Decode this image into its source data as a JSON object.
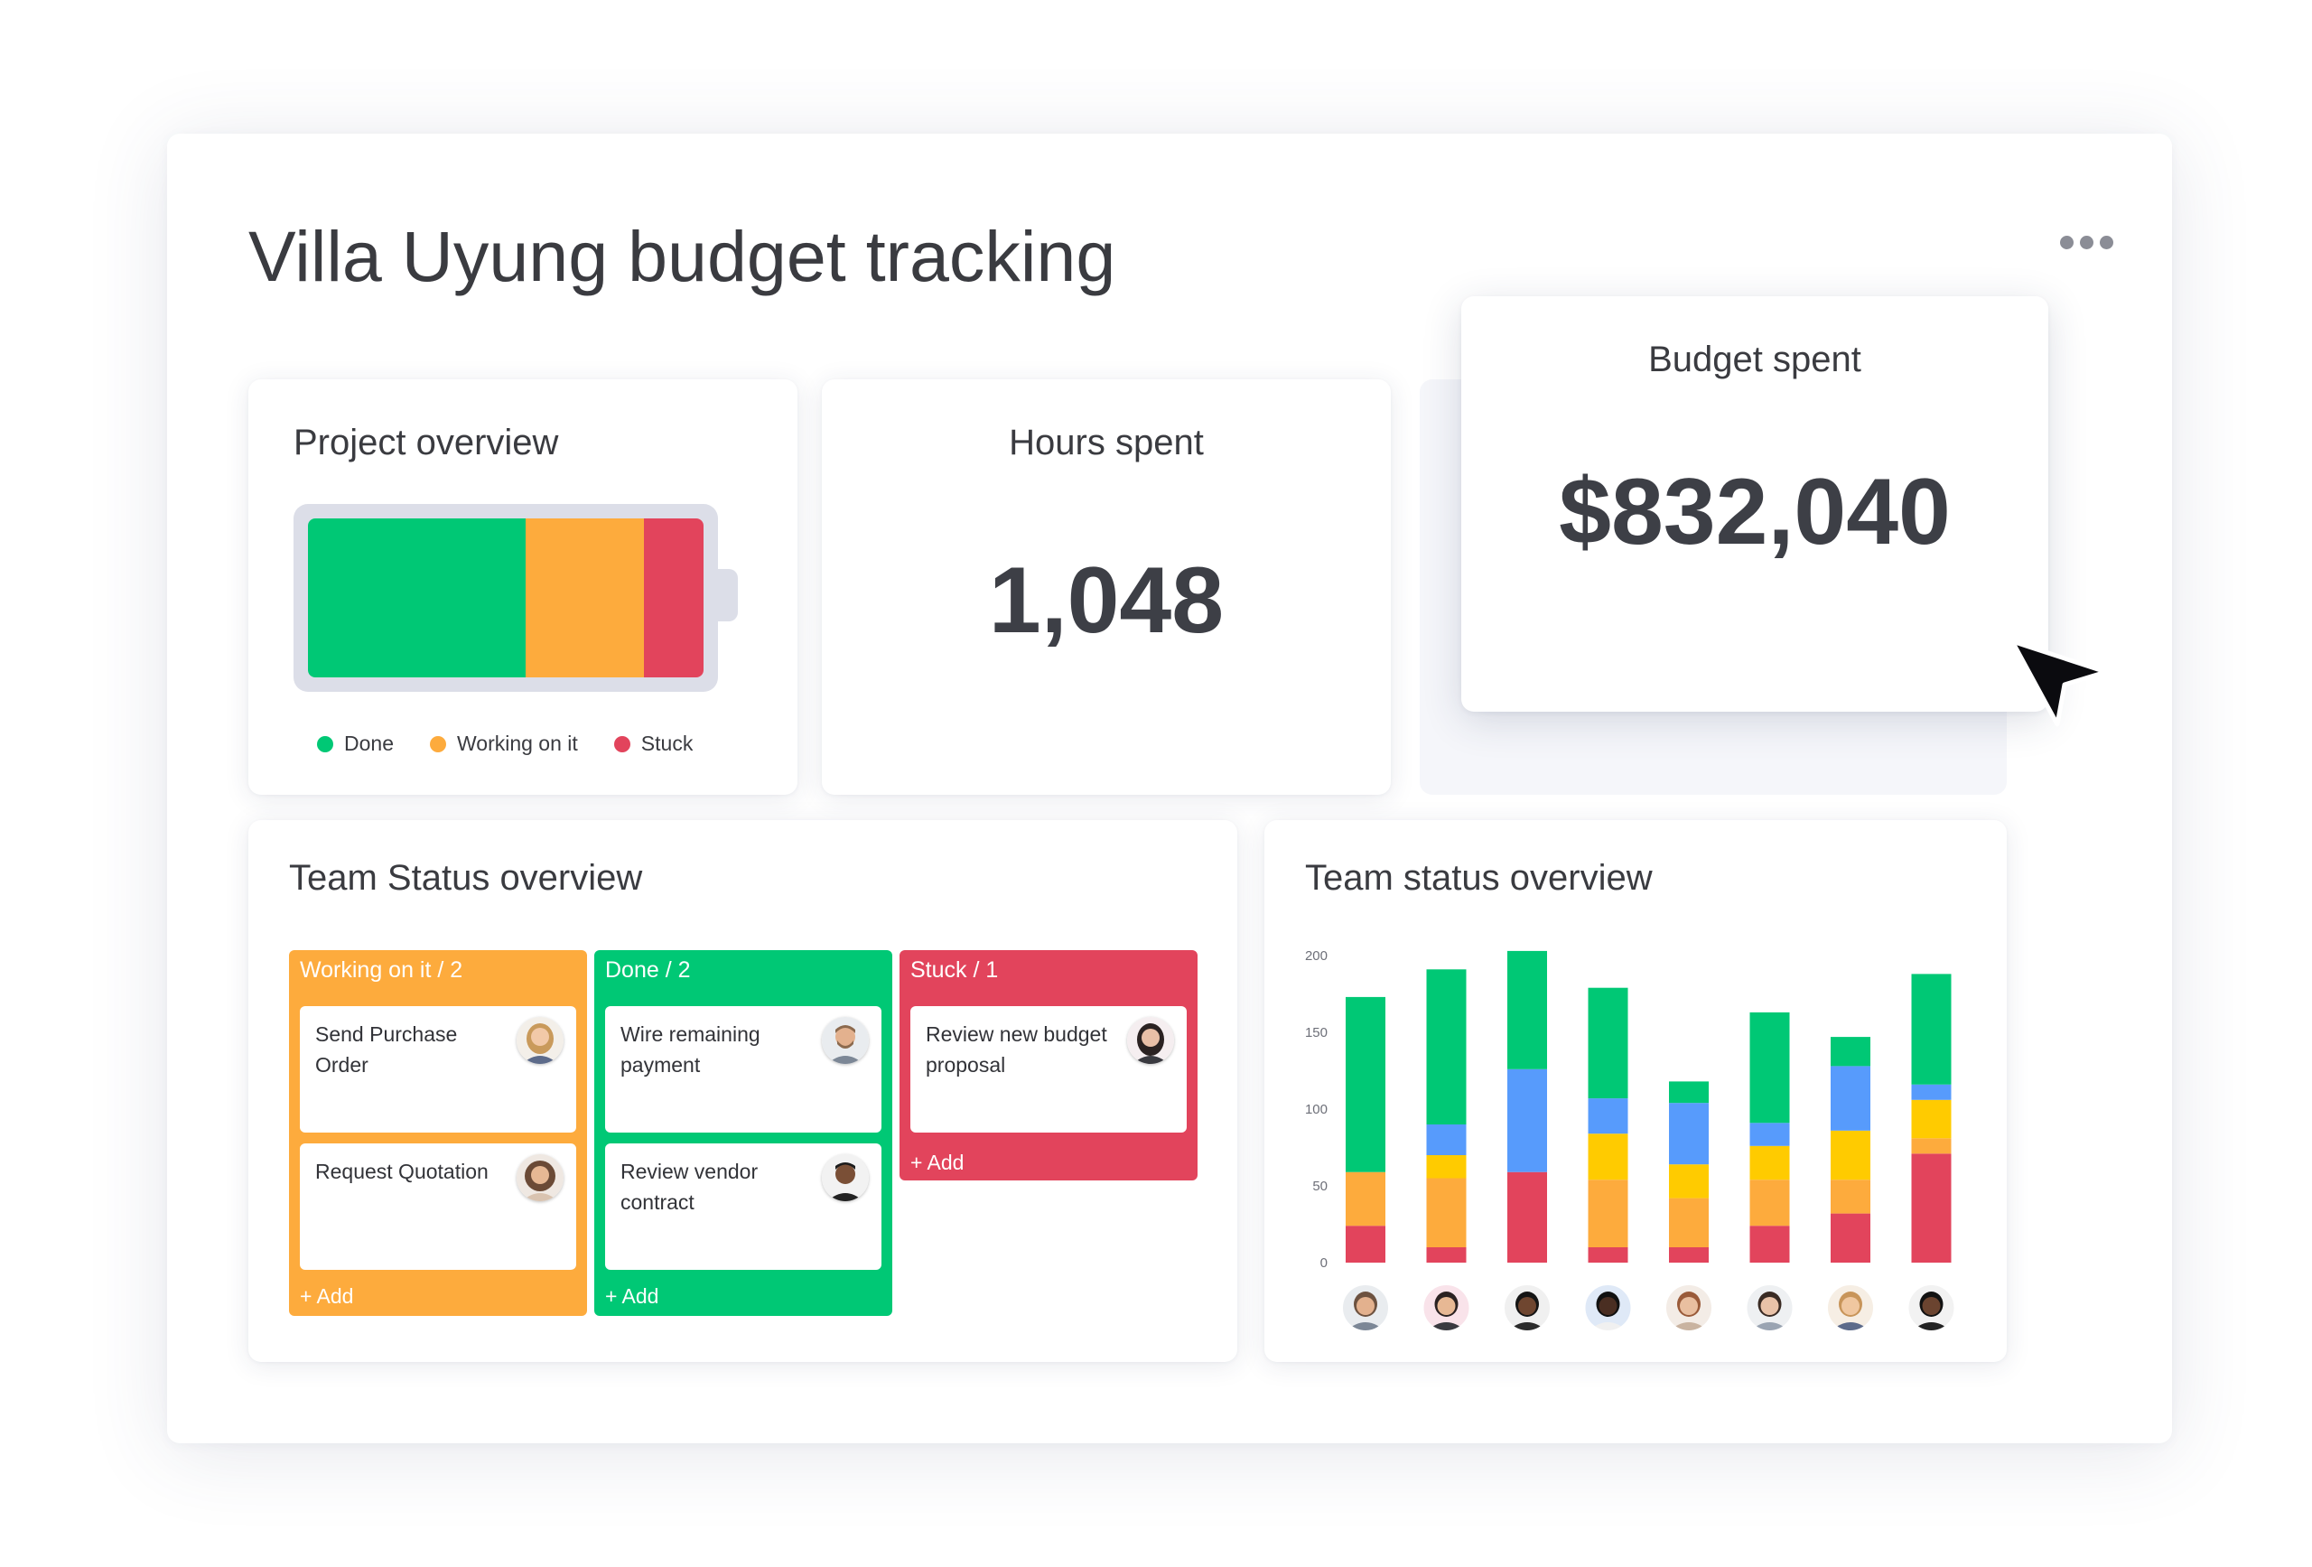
{
  "title": "Villa Uyung budget tracking",
  "colors": {
    "done": "#00c875",
    "working": "#fdab3d",
    "stuck": "#e2445c",
    "blue": "#579bfc",
    "yellow": "#ffcb00"
  },
  "menu_icon": "more-horizontal-icon",
  "project_overview": {
    "title": "Project overview",
    "segments": [
      {
        "label": "Done",
        "fraction": 0.55,
        "color": "#00c875"
      },
      {
        "label": "Working on it",
        "fraction": 0.3,
        "color": "#fdab3d"
      },
      {
        "label": "Stuck",
        "fraction": 0.15,
        "color": "#e2445c"
      }
    ]
  },
  "hours": {
    "title": "Hours spent",
    "value": "1,048"
  },
  "budget": {
    "title": "Budget spent",
    "value": "$832,040"
  },
  "team_status_kanban": {
    "title": "Team Status overview",
    "add_label": "+ Add",
    "columns": [
      {
        "header": "Working on it / 2",
        "color": "#fdab3d",
        "tasks": [
          {
            "text": "Send Purchase Order",
            "avatar": "avatar-woman-blonde"
          },
          {
            "text": "Request Quotation",
            "avatar": "avatar-woman-curly"
          }
        ]
      },
      {
        "header": "Done / 2",
        "color": "#00c875",
        "tasks": [
          {
            "text": "Wire remaining payment",
            "avatar": "avatar-man-beard"
          },
          {
            "text": "Review vendor contract",
            "avatar": "avatar-man-dark"
          }
        ]
      },
      {
        "header": "Stuck / 1",
        "color": "#e2445c",
        "tasks": [
          {
            "text": "Review new budget proposal",
            "avatar": "avatar-woman-dark-hair"
          }
        ]
      }
    ]
  },
  "team_status_chart": {
    "title": "Team status overview",
    "avatars": [
      "avatar-man-1",
      "avatar-woman-1",
      "avatar-man-2",
      "avatar-woman-2",
      "avatar-woman-3",
      "avatar-man-3",
      "avatar-woman-4",
      "avatar-man-4"
    ]
  },
  "chart_data": {
    "type": "bar",
    "stacked": true,
    "categories": [
      "",
      "",
      "",
      "",
      "",
      "",
      "",
      ""
    ],
    "ylim": [
      0,
      200
    ],
    "yticks": [
      "0",
      "50",
      "100",
      "150",
      "200"
    ],
    "series": [
      {
        "color": "#e2445c",
        "values": [
          24,
          10,
          59,
          10,
          10,
          24,
          32,
          71
        ]
      },
      {
        "color": "#fdab3d",
        "values": [
          35,
          45,
          0,
          44,
          32,
          30,
          22,
          10
        ]
      },
      {
        "color": "#ffcb00",
        "values": [
          0,
          15,
          0,
          30,
          22,
          22,
          32,
          25
        ]
      },
      {
        "color": "#579bfc",
        "values": [
          0,
          20,
          67,
          23,
          40,
          15,
          42,
          10
        ]
      },
      {
        "color": "#00c875",
        "values": [
          114,
          101,
          77,
          72,
          14,
          72,
          19,
          72
        ]
      }
    ],
    "grid": false,
    "legend": "none"
  }
}
